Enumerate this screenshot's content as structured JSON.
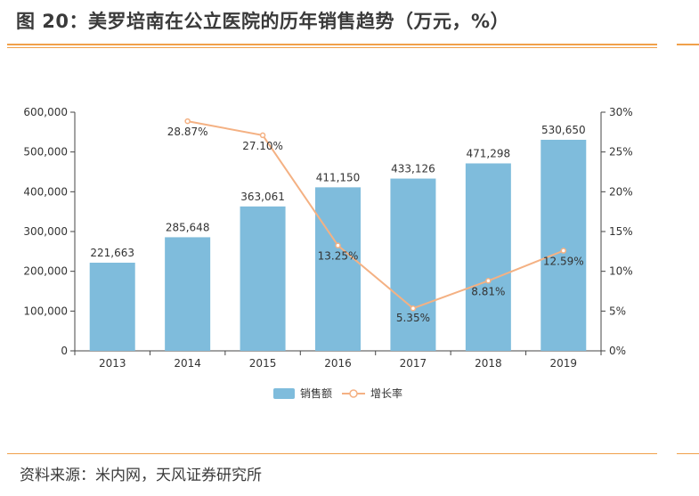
{
  "title": "图 20：美罗培南在公立医院的历年销售趋势（万元，%）",
  "source": "资料来源：米内网，天风证券研究所",
  "colors": {
    "bar": "#7fbcdc",
    "line": "#f4b183",
    "rule": "#f0a04a"
  },
  "chart_data": {
    "type": "bar",
    "categories": [
      "2013",
      "2014",
      "2015",
      "2016",
      "2017",
      "2018",
      "2019"
    ],
    "series": [
      {
        "name": "销售额",
        "type": "bar",
        "axis": "left",
        "values": [
          221663,
          285648,
          363061,
          411150,
          433126,
          471298,
          530650
        ],
        "labels": [
          "221,663",
          "285,648",
          "363,061",
          "411,150",
          "433,126",
          "471,298",
          "530,650"
        ]
      },
      {
        "name": "增长率",
        "type": "line",
        "axis": "right",
        "values": [
          null,
          28.87,
          27.1,
          13.25,
          5.35,
          8.81,
          12.59
        ],
        "labels": [
          "",
          "28.87%",
          "27.10%",
          "13.25%",
          "5.35%",
          "8.81%",
          "12.59%"
        ]
      }
    ],
    "y_left": {
      "min": 0,
      "max": 600000,
      "ticks": [
        "0",
        "100,000",
        "200,000",
        "300,000",
        "400,000",
        "500,000",
        "600,000"
      ]
    },
    "y_right": {
      "min": 0,
      "max": 30,
      "ticks": [
        "0%",
        "5%",
        "10%",
        "15%",
        "20%",
        "25%",
        "30%"
      ]
    },
    "legend": [
      "销售额",
      "增长率"
    ],
    "legend_position": "bottom"
  }
}
